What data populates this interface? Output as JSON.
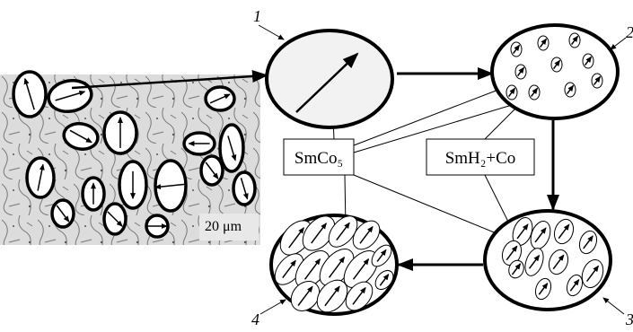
{
  "labels": {
    "stage_1": "1",
    "stage_2": "2",
    "stage_3": "3",
    "stage_4": "4"
  },
  "boxes": {
    "phase_a": "SmCo₅",
    "phase_b": "SmH₂+Co"
  },
  "micrograph": {
    "scale": "20 μm"
  }
}
